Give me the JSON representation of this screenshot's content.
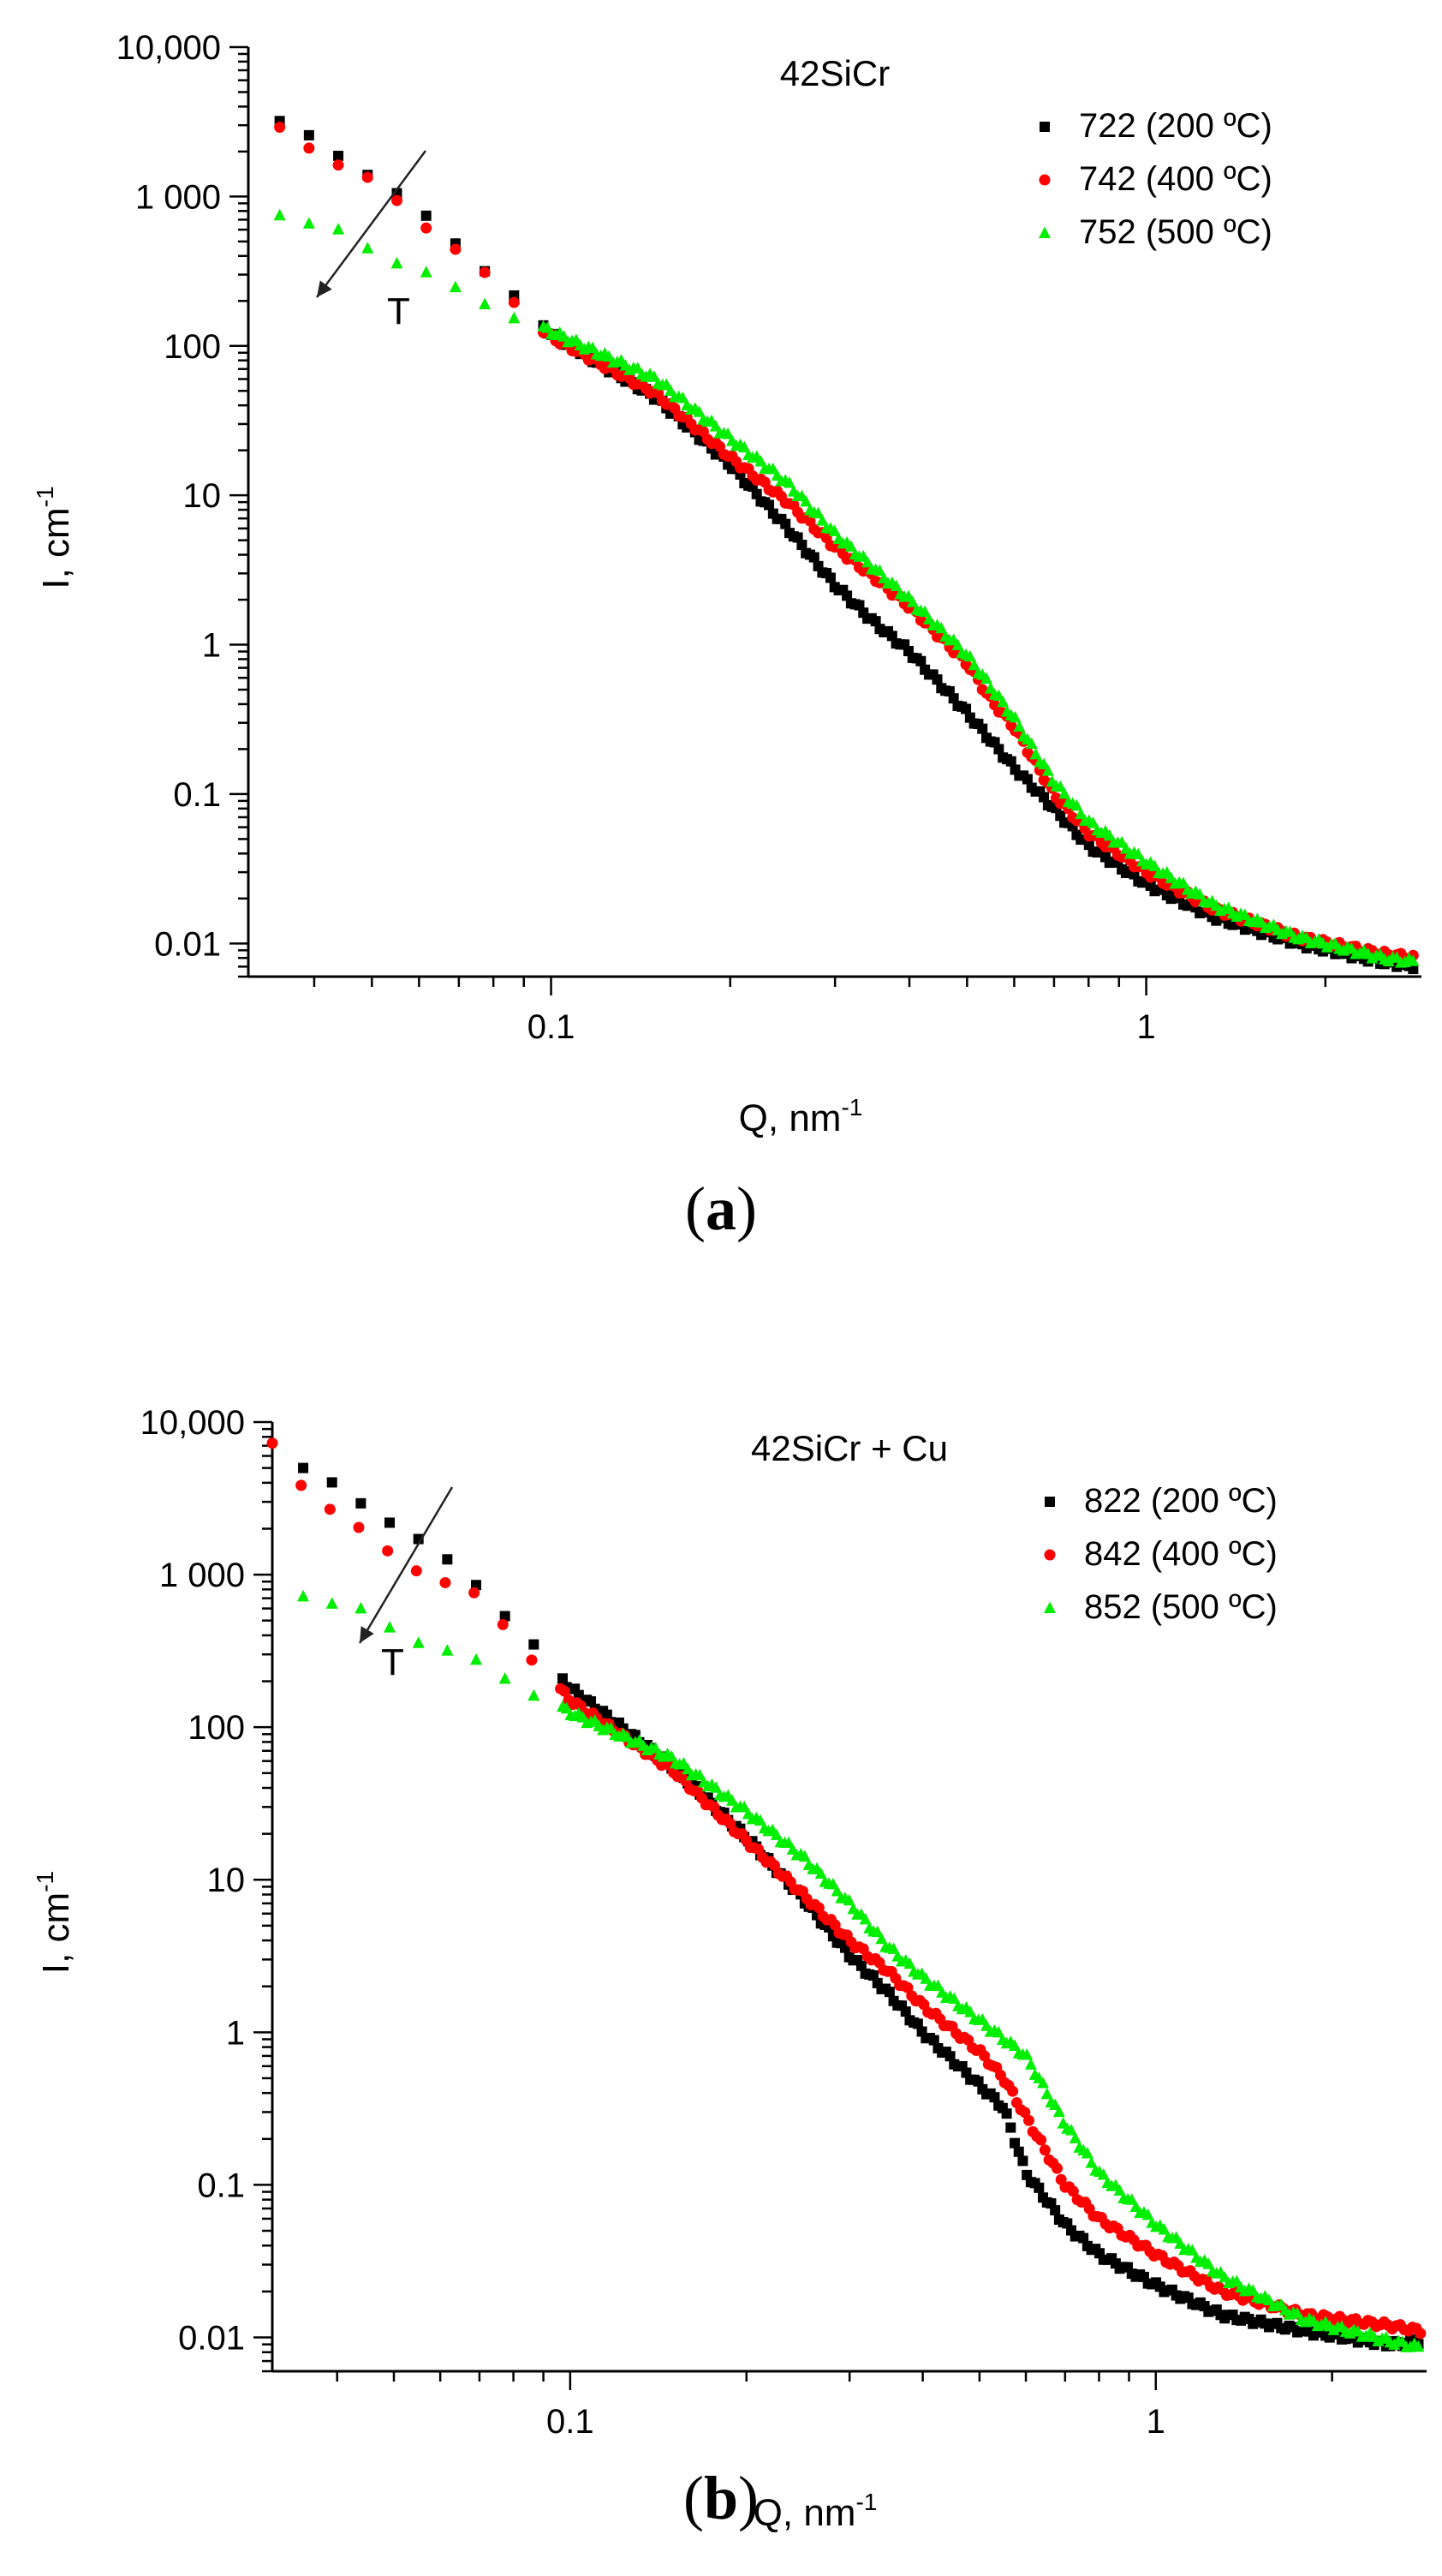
{
  "chart_data": [
    {
      "type": "scatter",
      "title": "42SiCr",
      "xlabel": "Q, nm",
      "xlabel_sup": "-1",
      "ylabel": "I, cm",
      "ylabel_sup": "-1",
      "xscale": "log",
      "yscale": "log",
      "xlim": [
        0.031,
        2.9
      ],
      "ylim": [
        0.006,
        10000
      ],
      "xticks": [
        {
          "value": 0.1,
          "label": "0.1"
        },
        {
          "value": 1,
          "label": "1"
        }
      ],
      "yticks": [
        {
          "value": 10000,
          "label": "10,000"
        },
        {
          "value": 1000,
          "label": "1 000"
        },
        {
          "value": 100,
          "label": "100"
        },
        {
          "value": 10,
          "label": "10"
        },
        {
          "value": 1,
          "label": "1"
        },
        {
          "value": 0.1,
          "label": "0.1"
        },
        {
          "value": 0.01,
          "label": "0.01"
        }
      ],
      "legend_position": "top-right",
      "annotation": "T",
      "panel_label": "a",
      "series": [
        {
          "name": "722 (200 ºC)",
          "marker": "square",
          "color": "#000000",
          "points": [
            [
              0.035,
              3200
            ],
            [
              0.05,
              1400
            ],
            [
              0.07,
              480
            ],
            [
              0.1,
              120
            ],
            [
              0.15,
              45
            ],
            [
              0.2,
              16
            ],
            [
              0.25,
              6
            ],
            [
              0.3,
              2.5
            ],
            [
              0.35,
              1.4
            ],
            [
              0.4,
              0.9
            ],
            [
              0.5,
              0.35
            ],
            [
              0.6,
              0.15
            ],
            [
              0.7,
              0.08
            ],
            [
              0.8,
              0.045
            ],
            [
              1.0,
              0.025
            ],
            [
              1.3,
              0.015
            ],
            [
              1.8,
              0.01
            ],
            [
              2.5,
              0.0075
            ],
            [
              2.85,
              0.007
            ]
          ]
        },
        {
          "name": "742 (400 ºC)",
          "marker": "circle",
          "color": "#ff0000",
          "points": [
            [
              0.035,
              2800
            ],
            [
              0.05,
              1250
            ],
            [
              0.07,
              430
            ],
            [
              0.1,
              115
            ],
            [
              0.15,
              48
            ],
            [
              0.2,
              18
            ],
            [
              0.25,
              9
            ],
            [
              0.3,
              4.5
            ],
            [
              0.35,
              2.8
            ],
            [
              0.4,
              1.8
            ],
            [
              0.5,
              0.75
            ],
            [
              0.55,
              0.42
            ],
            [
              0.6,
              0.28
            ],
            [
              0.7,
              0.1
            ],
            [
              0.8,
              0.055
            ],
            [
              1.0,
              0.03
            ],
            [
              1.3,
              0.017
            ],
            [
              1.8,
              0.011
            ],
            [
              2.5,
              0.0085
            ],
            [
              2.85,
              0.008
            ]
          ]
        },
        {
          "name": "752 (500 ºC)",
          "marker": "triangle",
          "color": "#00ee00",
          "points": [
            [
              0.035,
              780
            ],
            [
              0.045,
              560
            ],
            [
              0.05,
              430
            ],
            [
              0.06,
              330
            ],
            [
              0.07,
              230
            ],
            [
              0.1,
              125
            ],
            [
              0.15,
              60
            ],
            [
              0.2,
              24
            ],
            [
              0.25,
              12
            ],
            [
              0.3,
              5.5
            ],
            [
              0.35,
              3.2
            ],
            [
              0.4,
              2.0
            ],
            [
              0.5,
              0.85
            ],
            [
              0.6,
              0.32
            ],
            [
              0.7,
              0.12
            ],
            [
              0.8,
              0.065
            ],
            [
              1.0,
              0.035
            ],
            [
              1.3,
              0.018
            ],
            [
              1.8,
              0.011
            ],
            [
              2.5,
              0.008
            ],
            [
              2.85,
              0.0075
            ]
          ]
        }
      ]
    },
    {
      "type": "scatter",
      "title": "42SiCr + Cu",
      "xlabel": "Q, nm",
      "xlabel_sup": "-1",
      "ylabel": "I, cm",
      "ylabel_sup": "-1",
      "xscale": "log",
      "yscale": "log",
      "xlim": [
        0.031,
        2.9
      ],
      "ylim": [
        0.006,
        10000
      ],
      "xticks": [
        {
          "value": 0.1,
          "label": "0.1"
        },
        {
          "value": 1,
          "label": "1"
        }
      ],
      "yticks": [
        {
          "value": 10000,
          "label": "10,000"
        },
        {
          "value": 1000,
          "label": "1 000"
        },
        {
          "value": 100,
          "label": "100"
        },
        {
          "value": 10,
          "label": "10"
        },
        {
          "value": 1,
          "label": "1"
        },
        {
          "value": 0.1,
          "label": "0.1"
        },
        {
          "value": 0.01,
          "label": "0.01"
        }
      ],
      "legend_position": "top-right",
      "annotation": "T",
      "panel_label": "b",
      "series": [
        {
          "name": "822 (200 ºC)",
          "marker": "square",
          "color": "#000000",
          "points": [
            [
              0.035,
              5000
            ],
            [
              0.05,
              2200
            ],
            [
              0.07,
              850
            ],
            [
              0.1,
              180
            ],
            [
              0.15,
              55
            ],
            [
              0.2,
              19
            ],
            [
              0.25,
              7.5
            ],
            [
              0.3,
              3.2
            ],
            [
              0.35,
              1.8
            ],
            [
              0.4,
              1.0
            ],
            [
              0.5,
              0.45
            ],
            [
              0.55,
              0.32
            ],
            [
              0.6,
              0.12
            ],
            [
              0.7,
              0.055
            ],
            [
              0.8,
              0.035
            ],
            [
              1.0,
              0.022
            ],
            [
              1.3,
              0.014
            ],
            [
              1.8,
              0.011
            ],
            [
              2.5,
              0.009
            ],
            [
              2.85,
              0.0095
            ]
          ]
        },
        {
          "name": "842 (400 ºC)",
          "marker": "circle",
          "color": "#ff0000",
          "points": [
            [
              0.031,
              7000
            ],
            [
              0.035,
              3800
            ],
            [
              0.05,
              1300
            ],
            [
              0.07,
              700
            ],
            [
              0.1,
              150
            ],
            [
              0.15,
              52
            ],
            [
              0.2,
              18
            ],
            [
              0.25,
              8
            ],
            [
              0.3,
              4.0
            ],
            [
              0.35,
              2.5
            ],
            [
              0.4,
              1.5
            ],
            [
              0.5,
              0.75
            ],
            [
              0.55,
              0.5
            ],
            [
              0.6,
              0.28
            ],
            [
              0.7,
              0.1
            ],
            [
              0.8,
              0.06
            ],
            [
              1.0,
              0.035
            ],
            [
              1.3,
              0.02
            ],
            [
              1.8,
              0.014
            ],
            [
              2.5,
              0.012
            ],
            [
              2.85,
              0.011
            ]
          ]
        },
        {
          "name": "852 (500 ºC)",
          "marker": "triangle",
          "color": "#00ee00",
          "points": [
            [
              0.035,
              750
            ],
            [
              0.045,
              560
            ],
            [
              0.05,
              430
            ],
            [
              0.06,
              330
            ],
            [
              0.07,
              260
            ],
            [
              0.1,
              125
            ],
            [
              0.15,
              62
            ],
            [
              0.2,
              28
            ],
            [
              0.25,
              14
            ],
            [
              0.3,
              7
            ],
            [
              0.35,
              3.6
            ],
            [
              0.4,
              2.3
            ],
            [
              0.5,
              1.2
            ],
            [
              0.6,
              0.7
            ],
            [
              0.7,
              0.25
            ],
            [
              0.8,
              0.12
            ],
            [
              1.0,
              0.055
            ],
            [
              1.3,
              0.025
            ],
            [
              1.8,
              0.013
            ],
            [
              2.5,
              0.0095
            ],
            [
              2.85,
              0.0085
            ]
          ]
        }
      ]
    }
  ]
}
